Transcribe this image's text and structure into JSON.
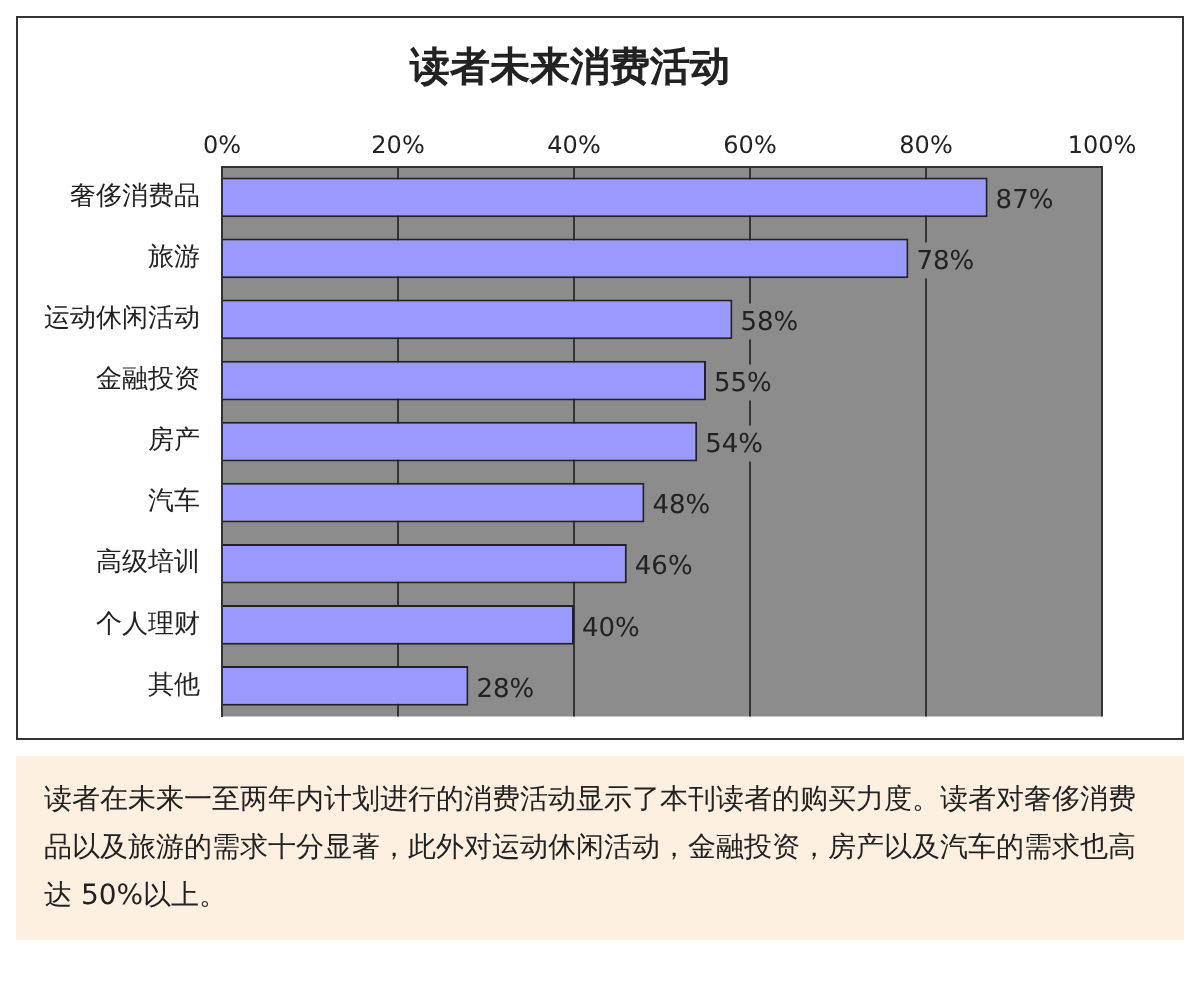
{
  "chart_data": {
    "type": "bar",
    "orientation": "horizontal",
    "title": "读者未来消费活动",
    "categories": [
      "奢侈消费品",
      "旅游",
      "运动休闲活动",
      "金融投资",
      "房产",
      "汽车",
      "高级培训",
      "个人理财",
      "其他"
    ],
    "values": [
      87,
      78,
      58,
      55,
      54,
      48,
      46,
      40,
      28
    ],
    "value_labels": [
      "87%",
      "78%",
      "58%",
      "55%",
      "54%",
      "48%",
      "46%",
      "40%",
      "28%"
    ],
    "color": "#9999ff",
    "xlim": [
      0,
      100
    ],
    "xticks": [
      {
        "value": 0,
        "label": "0%"
      },
      {
        "value": 20,
        "label": "20%"
      },
      {
        "value": 40,
        "label": "40%"
      },
      {
        "value": 60,
        "label": "60%"
      },
      {
        "value": 80,
        "label": "80%"
      },
      {
        "value": 100,
        "label": "100%"
      }
    ],
    "grid": "x",
    "annotations": [
      "读者在未来一至两年内计划进行的消费活动显示了本刊读者的购买力度。读者对奢侈消费品以及旅游的需求十分显著，此外对运动休闲活动，金融投资，房产以及汽车的需求也高达 50%以上。"
    ]
  }
}
